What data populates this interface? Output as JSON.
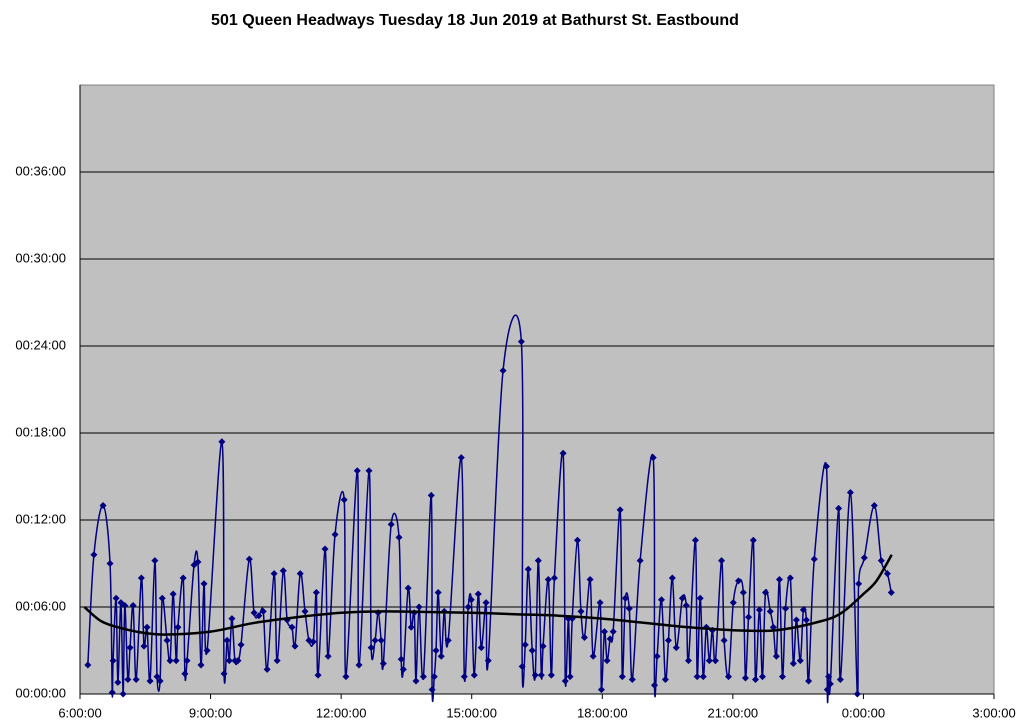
{
  "chart_data": {
    "type": "line",
    "title": "501 Queen Headways Tuesday 18 Jun 2019 at Bathurst St. Eastbound",
    "xlim": [
      6,
      27
    ],
    "ylim": [
      0,
      42
    ],
    "xticks": [
      {
        "value": 6,
        "label": "6:00:00"
      },
      {
        "value": 9,
        "label": "9:00:00"
      },
      {
        "value": 12,
        "label": "12:00:00"
      },
      {
        "value": 15,
        "label": "15:00:00"
      },
      {
        "value": 18,
        "label": "18:00:00"
      },
      {
        "value": 21,
        "label": "21:00:00"
      },
      {
        "value": 24,
        "label": "0:00:00"
      },
      {
        "value": 27,
        "label": "3:00:00"
      }
    ],
    "yticks": [
      {
        "value": 0,
        "label": "00:00:00"
      },
      {
        "value": 6,
        "label": "00:06:00"
      },
      {
        "value": 12,
        "label": "00:12:00"
      },
      {
        "value": 18,
        "label": "00:18:00"
      },
      {
        "value": 24,
        "label": "00:24:00"
      },
      {
        "value": 30,
        "label": "00:30:00"
      },
      {
        "value": 36,
        "label": "00:36:00"
      }
    ],
    "grid": true,
    "background": "#c0c0c0",
    "series": [
      {
        "color": "#000080",
        "x": [
          6.18,
          6.32,
          6.53,
          6.69,
          6.74,
          6.76,
          6.83,
          6.87,
          6.94,
          6.99,
          7.03,
          7.1,
          7.15,
          7.22,
          7.29,
          7.41,
          7.47,
          7.54,
          7.61,
          7.72,
          7.77,
          7.84,
          7.89,
          8.0,
          8.07,
          8.14,
          8.21,
          8.25,
          8.37,
          8.41,
          8.46,
          8.62,
          8.71,
          8.78,
          8.85,
          8.92,
          9.26,
          9.31,
          9.38,
          9.43,
          9.49,
          9.56,
          9.63,
          9.7,
          9.89,
          10.0,
          10.11,
          10.21,
          10.3,
          10.46,
          10.53,
          10.67,
          10.76,
          10.87,
          10.94,
          11.06,
          11.17,
          11.26,
          11.36,
          11.43,
          11.47,
          11.63,
          11.7,
          11.86,
          12.07,
          12.11,
          12.37,
          12.41,
          12.64,
          12.69,
          12.78,
          12.85,
          12.92,
          12.97,
          13.15,
          13.33,
          13.38,
          13.43,
          13.54,
          13.61,
          13.68,
          13.72,
          13.79,
          13.89,
          14.07,
          14.09,
          14.14,
          14.18,
          14.23,
          14.3,
          14.37,
          14.46,
          14.76,
          14.83,
          14.92,
          14.99,
          15.06,
          15.15,
          15.22,
          15.33,
          15.38,
          15.72,
          16.14,
          16.16,
          16.23,
          16.3,
          16.39,
          16.46,
          16.53,
          16.6,
          16.64,
          16.76,
          16.83,
          16.9,
          17.1,
          17.15,
          17.22,
          17.26,
          17.31,
          17.43,
          17.51,
          17.59,
          17.72,
          17.79,
          17.95,
          17.98,
          18.05,
          18.11,
          18.18,
          18.25,
          18.41,
          18.46,
          18.53,
          18.62,
          18.69,
          18.87,
          19.17,
          19.2,
          19.26,
          19.36,
          19.45,
          19.52,
          19.61,
          19.7,
          19.84,
          19.93,
          19.98,
          20.14,
          20.18,
          20.25,
          20.32,
          20.39,
          20.46,
          20.53,
          20.6,
          20.74,
          20.8,
          20.9,
          21.01,
          21.13,
          21.24,
          21.29,
          21.36,
          21.47,
          21.52,
          21.61,
          21.68,
          21.75,
          21.86,
          21.93,
          22.0,
          22.07,
          22.14,
          22.21,
          22.32,
          22.39,
          22.46,
          22.55,
          22.62,
          22.69,
          22.74,
          22.87,
          23.15,
          23.17,
          23.2,
          23.24,
          23.43,
          23.47,
          23.7,
          23.86,
          23.89,
          24.02,
          24.25,
          24.41,
          24.55,
          24.64
        ],
        "values": [
          2.0,
          9.6,
          13.0,
          9.0,
          0.1,
          2.3,
          6.6,
          0.8,
          6.3,
          0,
          6.1,
          1.0,
          3.2,
          6.1,
          1.0,
          8.0,
          3.3,
          4.6,
          0.9,
          9.2,
          1.2,
          0.9,
          6.6,
          3.7,
          2.3,
          6.9,
          2.3,
          4.6,
          8.0,
          1.4,
          2.3,
          8.9,
          9.1,
          2.0,
          7.6,
          3.0,
          17.4,
          1.4,
          3.7,
          2.3,
          5.2,
          2.3,
          2.3,
          3.4,
          9.3,
          5.6,
          5.4,
          5.7,
          1.7,
          8.3,
          2.3,
          8.5,
          5.1,
          4.6,
          3.3,
          8.3,
          5.7,
          3.7,
          3.6,
          7.0,
          1.3,
          10.0,
          2.6,
          11.0,
          13.4,
          1.2,
          15.4,
          2.0,
          15.4,
          3.2,
          3.7,
          5.6,
          3.7,
          2.1,
          11.7,
          10.8,
          2.4,
          1.7,
          7.3,
          4.6,
          5.6,
          0.9,
          6.0,
          1.2,
          13.7,
          0.3,
          1.2,
          3.0,
          7.0,
          2.6,
          5.7,
          3.7,
          16.3,
          1.2,
          6.0,
          6.5,
          1.3,
          6.9,
          3.2,
          6.3,
          2.3,
          22.3,
          24.3,
          1.9,
          3.4,
          8.6,
          3.0,
          1.3,
          9.2,
          1.3,
          3.3,
          7.9,
          1.3,
          8.0,
          16.6,
          0.9,
          5.2,
          1.2,
          5.2,
          10.6,
          5.7,
          3.9,
          7.9,
          2.6,
          6.3,
          0.3,
          4.3,
          2.3,
          3.8,
          4.3,
          12.7,
          1.2,
          6.6,
          5.9,
          1.0,
          9.2,
          16.3,
          0.6,
          2.6,
          6.5,
          1.0,
          3.7,
          8.0,
          3.2,
          6.6,
          6.1,
          2.3,
          10.6,
          1.2,
          6.6,
          1.2,
          4.6,
          2.3,
          4.4,
          2.3,
          9.2,
          3.7,
          1.2,
          6.3,
          7.8,
          7.0,
          1.1,
          5.3,
          10.6,
          1.0,
          5.8,
          1.2,
          7.0,
          5.7,
          4.6,
          2.6,
          7.9,
          1.2,
          5.9,
          8.0,
          2.1,
          5.1,
          2.3,
          5.8,
          5.1,
          0.9,
          9.3,
          15.7,
          0.3,
          1.2,
          0.7,
          12.8,
          1.0,
          13.9,
          0.0,
          7.6,
          9.4,
          13.0,
          9.2,
          8.3,
          7.0
        ]
      }
    ],
    "trendline": {
      "color": "#000000",
      "x": [
        6.1,
        6.5,
        7,
        7.5,
        8,
        9,
        10,
        11,
        12,
        13,
        15,
        16,
        17,
        18,
        19,
        20,
        21,
        22,
        23,
        23.5,
        24,
        24.3,
        24.65
      ],
      "values": [
        6.0,
        5.0,
        4.5,
        4.2,
        4.1,
        4.3,
        4.9,
        5.3,
        5.6,
        5.7,
        5.6,
        5.5,
        5.4,
        5.2,
        4.9,
        4.6,
        4.4,
        4.4,
        5.0,
        5.6,
        6.9,
        7.8,
        9.6
      ]
    }
  }
}
